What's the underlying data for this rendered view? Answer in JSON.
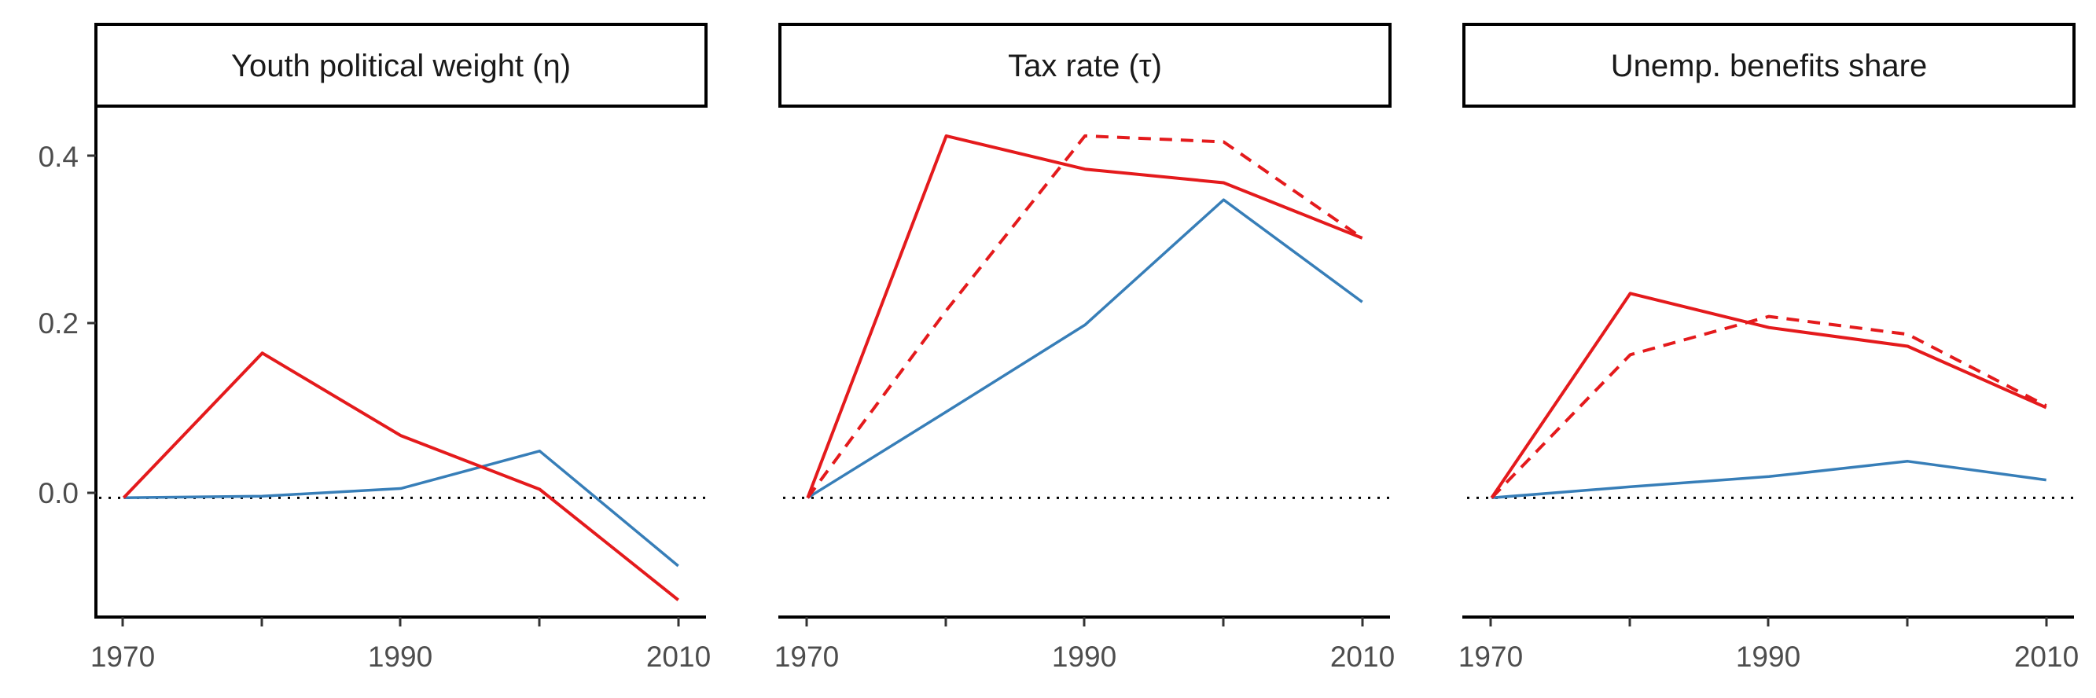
{
  "chart_data": [
    {
      "type": "line",
      "title": "Youth political weight (η)",
      "x": [
        1970,
        1980,
        1990,
        2000,
        2010
      ],
      "series": [
        {
          "color": "#e41a1c",
          "dashed": false,
          "values": [
            0.0,
            0.17,
            0.073,
            0.01,
            -0.12
          ]
        },
        {
          "color": "#377eb8",
          "dashed": false,
          "values": [
            0.0,
            0.002,
            0.011,
            0.055,
            -0.08
          ]
        }
      ],
      "ylim": [
        -0.14,
        0.46
      ],
      "yticks": [
        "0.0",
        "0.2",
        "0.4"
      ],
      "xticks": [
        "1970",
        "1990",
        "2010"
      ],
      "reference_line": {
        "y": 0,
        "style": "dotted"
      }
    },
    {
      "type": "line",
      "title": "Tax rate (τ)",
      "x": [
        1970,
        1980,
        1990,
        2000,
        2010
      ],
      "series": [
        {
          "color": "#e41a1c",
          "dashed": false,
          "values": [
            0.0,
            0.425,
            0.386,
            0.37,
            0.305
          ]
        },
        {
          "color": "#e41a1c",
          "dashed": true,
          "values": [
            0.0,
            0.22,
            0.425,
            0.418,
            0.305
          ]
        },
        {
          "color": "#377eb8",
          "dashed": false,
          "values": [
            0.0,
            0.101,
            0.203,
            0.35,
            0.23
          ]
        }
      ],
      "ylim": [
        -0.14,
        0.46
      ],
      "xticks": [
        "1970",
        "1990",
        "2010"
      ],
      "reference_line": {
        "y": 0,
        "style": "dotted"
      }
    },
    {
      "type": "line",
      "title": "Unemp. benefits share",
      "x": [
        1970,
        1980,
        1990,
        2000,
        2010
      ],
      "series": [
        {
          "color": "#e41a1c",
          "dashed": false,
          "values": [
            0.0,
            0.24,
            0.2,
            0.178,
            0.106
          ]
        },
        {
          "color": "#e41a1c",
          "dashed": true,
          "values": [
            0.0,
            0.168,
            0.213,
            0.192,
            0.108
          ]
        },
        {
          "color": "#377eb8",
          "dashed": false,
          "values": [
            0.0,
            0.013,
            0.025,
            0.043,
            0.021
          ]
        }
      ],
      "ylim": [
        -0.14,
        0.46
      ],
      "xticks": [
        "1970",
        "1990",
        "2010"
      ],
      "reference_line": {
        "y": 0,
        "style": "dotted"
      }
    }
  ]
}
